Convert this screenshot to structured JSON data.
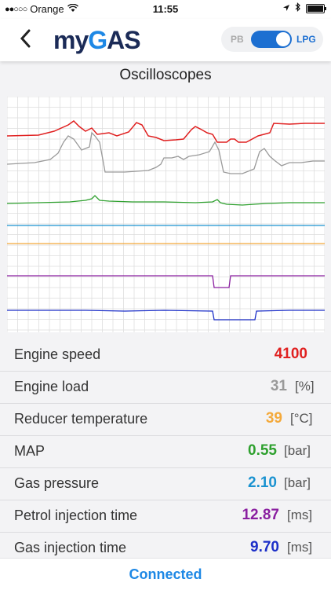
{
  "status_bar": {
    "carrier": "Orange",
    "time": "11:55"
  },
  "header": {
    "logo_part1": "my",
    "logo_part2": "G",
    "logo_part3": "AS",
    "toggle_left": "PB",
    "toggle_right": "LPG",
    "toggle_state": "LPG"
  },
  "section_title": "Oscilloscopes",
  "traces": [
    {
      "id": "engine-speed",
      "color": "#e02020"
    },
    {
      "id": "engine-load",
      "color": "#9a9a9a"
    },
    {
      "id": "map",
      "color": "#2ea02e"
    },
    {
      "id": "gas-pressure",
      "color": "#1a92d0"
    },
    {
      "id": "reducer-temperature",
      "color": "#f4a93a"
    },
    {
      "id": "petrol-injection-time",
      "color": "#8a1fa0"
    },
    {
      "id": "gas-injection-time",
      "color": "#1c2fc8"
    }
  ],
  "parameters": [
    {
      "label": "Engine speed",
      "value": "4100",
      "unit": "",
      "color": "#e02020"
    },
    {
      "label": "Engine load",
      "value": "31",
      "unit": "[%]",
      "color": "#9a9a9a"
    },
    {
      "label": "Reducer temperature",
      "value": "39",
      "unit": "[°C]",
      "color": "#f4a93a"
    },
    {
      "label": "MAP",
      "value": "0.55",
      "unit": "[bar]",
      "color": "#2ea02e"
    },
    {
      "label": "Gas pressure",
      "value": "2.10",
      "unit": "[bar]",
      "color": "#1a92d0"
    },
    {
      "label": "Petrol injection time",
      "value": "12.87",
      "unit": "[ms]",
      "color": "#8a1fa0"
    },
    {
      "label": "Gas injection time",
      "value": "9.70",
      "unit": "[ms]",
      "color": "#1c2fc8"
    }
  ],
  "footer": {
    "connection_status": "Connected"
  }
}
